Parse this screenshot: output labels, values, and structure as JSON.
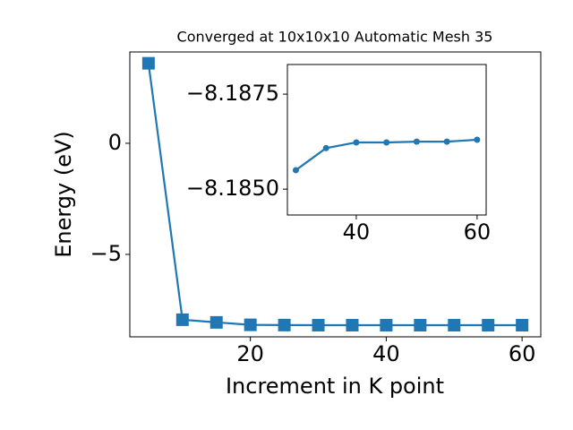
{
  "chart_data": [
    {
      "type": "line",
      "title": "Converged at 10x10x10 Automatic Mesh 35",
      "xlabel": "Increment in K point",
      "ylabel": "Energy (eV)",
      "x": [
        5,
        10,
        15,
        20,
        25,
        30,
        35,
        40,
        45,
        50,
        55,
        60
      ],
      "series": [
        {
          "color": "#1f77b4",
          "marker": "square",
          "values": [
            3.6,
            -7.94,
            -8.06,
            -8.17,
            -8.18,
            -8.1855,
            -8.1861,
            -8.1862,
            -8.1862,
            -8.18625,
            -8.18625,
            -8.1863
          ]
        }
      ],
      "xlim": [
        2.25,
        62.75
      ],
      "ylim": [
        -8.71,
        4.11
      ],
      "xticks": [
        20,
        40,
        60
      ],
      "yticks": [
        {
          "value": -5,
          "label": "−5"
        },
        0
      ]
    },
    {
      "type": "line",
      "x": [
        30,
        35,
        40,
        45,
        50,
        55,
        60
      ],
      "series": [
        {
          "color": "#1f77b4",
          "marker": "circle",
          "values": [
            -8.1855,
            -8.18608,
            -8.18623,
            -8.18623,
            -8.18625,
            -8.18625,
            -8.1863
          ]
        }
      ],
      "xlim": [
        28.6,
        61.5
      ],
      "ylim": [
        -8.18432,
        -8.18828
      ],
      "xticks": [
        40,
        60
      ],
      "yticks": [
        {
          "value": -8.185,
          "label": "−8.1850"
        },
        {
          "value": -8.1875,
          "label": "−8.1875"
        }
      ]
    }
  ]
}
